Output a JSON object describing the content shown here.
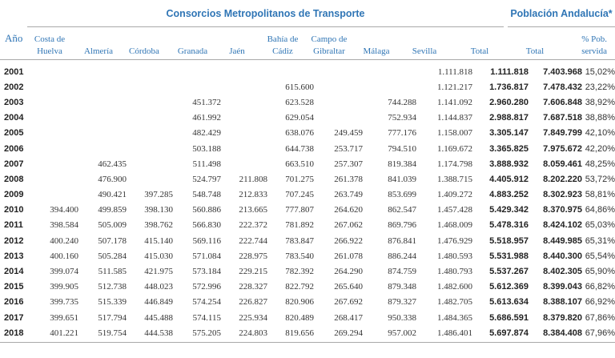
{
  "header": {
    "group_left": "Consorcios Metropolitanos de Transporte",
    "group_right": "Población Andalucía*"
  },
  "columns": {
    "year": "Año",
    "huelva_1": "Costa de",
    "huelva_2": "Huelva",
    "almeria": "Almería",
    "cordoba": "Córdoba",
    "granada": "Granada",
    "jaen": "Jaén",
    "bahia_1": "Bahía de",
    "bahia_2": "Cádiz",
    "campo_1": "Campo de",
    "campo_2": "Gibraltar",
    "malaga": "Málaga",
    "sevilla": "Sevilla",
    "total": "Total",
    "pob_total": "Total",
    "pob_pct_1": "% Pob.",
    "pob_pct_2": "servida"
  },
  "rows": [
    {
      "year": "2001",
      "huelva": "",
      "almeria": "",
      "cordoba": "",
      "granada": "",
      "jaen": "",
      "bahia": "",
      "campo": "",
      "malaga": "",
      "sevilla": "1.111.818",
      "total": "1.111.818",
      "pob_total": "7.403.968",
      "pob_pct": "15,02%"
    },
    {
      "year": "2002",
      "huelva": "",
      "almeria": "",
      "cordoba": "",
      "granada": "",
      "jaen": "",
      "bahia": "615.600",
      "campo": "",
      "malaga": "",
      "sevilla": "1.121.217",
      "total": "1.736.817",
      "pob_total": "7.478.432",
      "pob_pct": "23,22%"
    },
    {
      "year": "2003",
      "huelva": "",
      "almeria": "",
      "cordoba": "",
      "granada": "451.372",
      "jaen": "",
      "bahia": "623.528",
      "campo": "",
      "malaga": "744.288",
      "sevilla": "1.141.092",
      "total": "2.960.280",
      "pob_total": "7.606.848",
      "pob_pct": "38,92%"
    },
    {
      "year": "2004",
      "huelva": "",
      "almeria": "",
      "cordoba": "",
      "granada": "461.992",
      "jaen": "",
      "bahia": "629.054",
      "campo": "",
      "malaga": "752.934",
      "sevilla": "1.144.837",
      "total": "2.988.817",
      "pob_total": "7.687.518",
      "pob_pct": "38,88%"
    },
    {
      "year": "2005",
      "huelva": "",
      "almeria": "",
      "cordoba": "",
      "granada": "482.429",
      "jaen": "",
      "bahia": "638.076",
      "campo": "249.459",
      "malaga": "777.176",
      "sevilla": "1.158.007",
      "total": "3.305.147",
      "pob_total": "7.849.799",
      "pob_pct": "42,10%"
    },
    {
      "year": "2006",
      "huelva": "",
      "almeria": "",
      "cordoba": "",
      "granada": "503.188",
      "jaen": "",
      "bahia": "644.738",
      "campo": "253.717",
      "malaga": "794.510",
      "sevilla": "1.169.672",
      "total": "3.365.825",
      "pob_total": "7.975.672",
      "pob_pct": "42,20%"
    },
    {
      "year": "2007",
      "huelva": "",
      "almeria": "462.435",
      "cordoba": "",
      "granada": "511.498",
      "jaen": "",
      "bahia": "663.510",
      "campo": "257.307",
      "malaga": "819.384",
      "sevilla": "1.174.798",
      "total": "3.888.932",
      "pob_total": "8.059.461",
      "pob_pct": "48,25%"
    },
    {
      "year": "2008",
      "huelva": "",
      "almeria": "476.900",
      "cordoba": "",
      "granada": "524.797",
      "jaen": "211.808",
      "bahia": "701.275",
      "campo": "261.378",
      "malaga": "841.039",
      "sevilla": "1.388.715",
      "total": "4.405.912",
      "pob_total": "8.202.220",
      "pob_pct": "53,72%"
    },
    {
      "year": "2009",
      "huelva": "",
      "almeria": "490.421",
      "cordoba": "397.285",
      "granada": "548.748",
      "jaen": "212.833",
      "bahia": "707.245",
      "campo": "263.749",
      "malaga": "853.699",
      "sevilla": "1.409.272",
      "total": "4.883.252",
      "pob_total": "8.302.923",
      "pob_pct": "58,81%"
    },
    {
      "year": "2010",
      "huelva": "394.400",
      "almeria": "499.859",
      "cordoba": "398.130",
      "granada": "560.886",
      "jaen": "213.665",
      "bahia": "777.807",
      "campo": "264.620",
      "malaga": "862.547",
      "sevilla": "1.457.428",
      "total": "5.429.342",
      "pob_total": "8.370.975",
      "pob_pct": "64,86%"
    },
    {
      "year": "2011",
      "huelva": "398.584",
      "almeria": "505.009",
      "cordoba": "398.762",
      "granada": "566.830",
      "jaen": "222.372",
      "bahia": "781.892",
      "campo": "267.062",
      "malaga": "869.796",
      "sevilla": "1.468.009",
      "total": "5.478.316",
      "pob_total": "8.424.102",
      "pob_pct": "65,03%"
    },
    {
      "year": "2012",
      "huelva": "400.240",
      "almeria": "507.178",
      "cordoba": "415.140",
      "granada": "569.116",
      "jaen": "222.744",
      "bahia": "783.847",
      "campo": "266.922",
      "malaga": "876.841",
      "sevilla": "1.476.929",
      "total": "5.518.957",
      "pob_total": "8.449.985",
      "pob_pct": "65,31%"
    },
    {
      "year": "2013",
      "huelva": "400.160",
      "almeria": "505.284",
      "cordoba": "415.030",
      "granada": "571.084",
      "jaen": "228.975",
      "bahia": "783.540",
      "campo": "261.078",
      "malaga": "886.244",
      "sevilla": "1.480.593",
      "total": "5.531.988",
      "pob_total": "8.440.300",
      "pob_pct": "65,54%"
    },
    {
      "year": "2014",
      "huelva": "399.074",
      "almeria": "511.585",
      "cordoba": "421.975",
      "granada": "573.184",
      "jaen": "229.215",
      "bahia": "782.392",
      "campo": "264.290",
      "malaga": "874.759",
      "sevilla": "1.480.793",
      "total": "5.537.267",
      "pob_total": "8.402.305",
      "pob_pct": "65,90%"
    },
    {
      "year": "2015",
      "huelva": "399.905",
      "almeria": "512.738",
      "cordoba": "448.023",
      "granada": "572.996",
      "jaen": "228.327",
      "bahia": "822.792",
      "campo": "265.640",
      "malaga": "879.348",
      "sevilla": "1.482.600",
      "total": "5.612.369",
      "pob_total": "8.399.043",
      "pob_pct": "66,82%"
    },
    {
      "year": "2016",
      "huelva": "399.735",
      "almeria": "515.339",
      "cordoba": "446.849",
      "granada": "574.254",
      "jaen": "226.827",
      "bahia": "820.906",
      "campo": "267.692",
      "malaga": "879.327",
      "sevilla": "1.482.705",
      "total": "5.613.634",
      "pob_total": "8.388.107",
      "pob_pct": "66,92%"
    },
    {
      "year": "2017",
      "huelva": "399.651",
      "almeria": "517.794",
      "cordoba": "445.488",
      "granada": "574.115",
      "jaen": "225.934",
      "bahia": "820.489",
      "campo": "268.417",
      "malaga": "950.338",
      "sevilla": "1.484.365",
      "total": "5.686.591",
      "pob_total": "8.379.820",
      "pob_pct": "67,86%"
    },
    {
      "year": "2018",
      "huelva": "401.221",
      "almeria": "519.754",
      "cordoba": "444.538",
      "granada": "575.205",
      "jaen": "224.803",
      "bahia": "819.656",
      "campo": "269.294",
      "malaga": "957.002",
      "sevilla": "1.486.401",
      "total": "5.697.874",
      "pob_total": "8.384.408",
      "pob_pct": "67,96%"
    }
  ]
}
